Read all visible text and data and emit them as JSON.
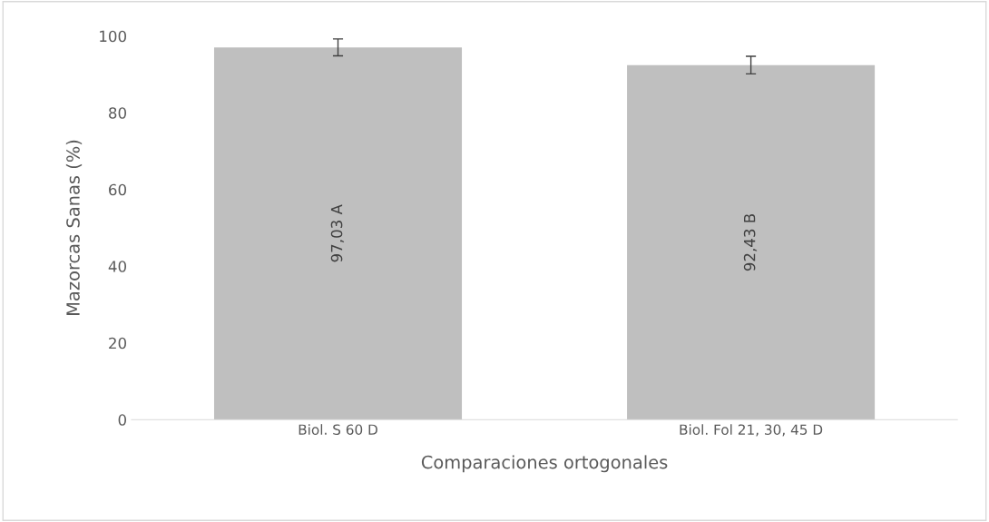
{
  "chart_data": {
    "type": "bar",
    "xlabel": "Comparaciones ortogonales",
    "ylabel": "Mazorcas Sanas (%)",
    "categories": [
      "Biol. S 60 D",
      "Biol. Fol 21, 30, 45 D"
    ],
    "values": [
      97.03,
      92.43
    ],
    "errors": [
      2.2,
      2.3
    ],
    "value_labels": [
      "97,03 A",
      "92,43 B"
    ],
    "color": "#bfbfbf",
    "ylim": [
      0,
      100
    ],
    "yticks": [
      0,
      20,
      40,
      60,
      80,
      100
    ],
    "grid": false,
    "legend": false
  }
}
